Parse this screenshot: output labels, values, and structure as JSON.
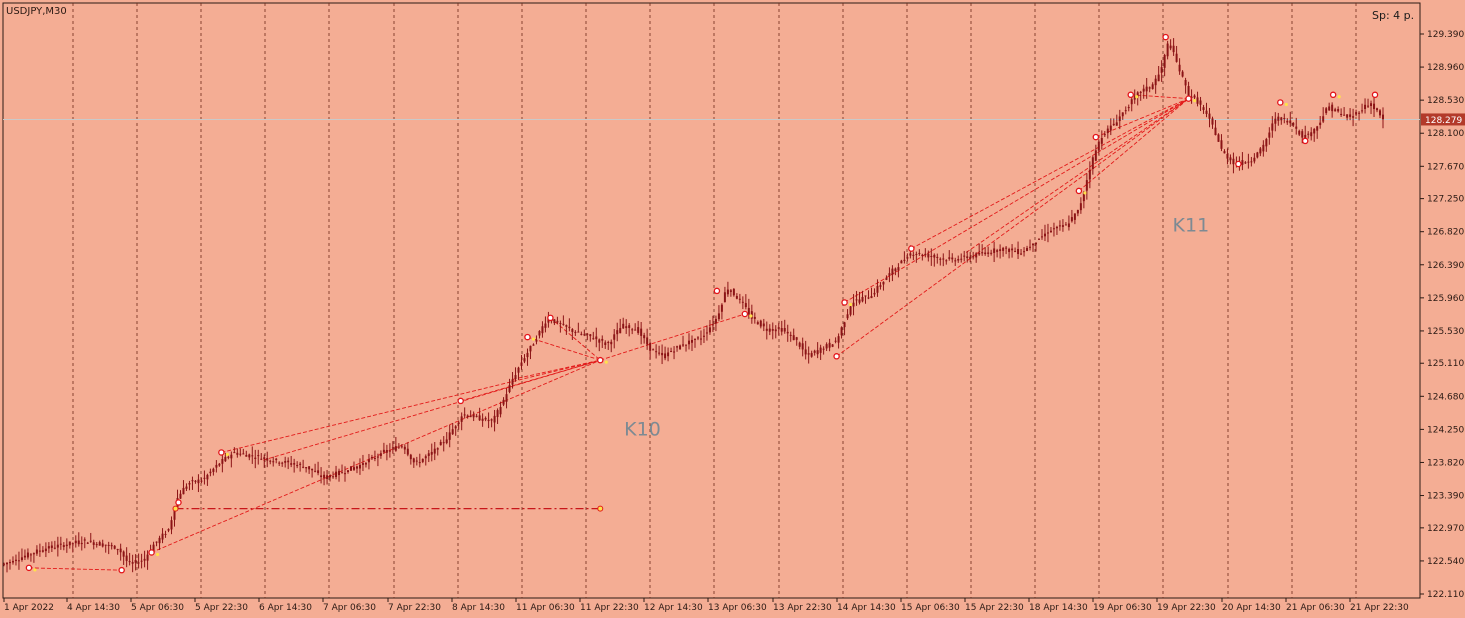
{
  "window": {
    "symbol_title": "USDJPY,M30",
    "spread_label": "Sp: 4 p."
  },
  "colors": {
    "background": "#f4ad94",
    "candle": "#8b1416",
    "grid": "#6e2a1a",
    "trendline": "#e21a1a",
    "marker": "#ffffff",
    "marker_yellow": "#ffe24a",
    "price_line": "#c9c9c9",
    "price_tag": "#b33a2a"
  },
  "chart_data": {
    "type": "candlestick",
    "symbol": "USDJPY",
    "timeframe": "M30",
    "ylim": [
      122.11,
      129.59
    ],
    "grid": "vertical-dashed",
    "y_ticks": [
      "129.390",
      "128.960",
      "128.530",
      "128.100",
      "127.670",
      "127.250",
      "126.820",
      "126.390",
      "125.960",
      "125.530",
      "125.110",
      "124.680",
      "124.250",
      "123.820",
      "123.390",
      "122.970",
      "122.540",
      "122.110"
    ],
    "x_ticks": [
      "1 Apr 2022",
      "4 Apr 14:30",
      "5 Apr 06:30",
      "5 Apr 22:30",
      "6 Apr 14:30",
      "7 Apr 06:30",
      "7 Apr 22:30",
      "8 Apr 14:30",
      "11 Apr 06:30",
      "11 Apr 22:30",
      "12 Apr 14:30",
      "13 Apr 06:30",
      "13 Apr 22:30",
      "14 Apr 14:30",
      "15 Apr 06:30",
      "15 Apr 22:30",
      "18 Apr 14:30",
      "19 Apr 06:30",
      "19 Apr 22:30",
      "20 Apr 14:30",
      "21 Apr 06:30",
      "21 Apr 22:30"
    ],
    "current_price": "128.279",
    "price_path": [
      [
        0,
        122.5
      ],
      [
        20,
        122.6
      ],
      [
        40,
        122.7
      ],
      [
        60,
        122.75
      ],
      [
        80,
        122.8
      ],
      [
        100,
        122.75
      ],
      [
        115,
        122.7
      ],
      [
        125,
        122.5
      ],
      [
        140,
        122.55
      ],
      [
        150,
        122.75
      ],
      [
        165,
        122.95
      ],
      [
        175,
        123.4
      ],
      [
        185,
        123.55
      ],
      [
        200,
        123.6
      ],
      [
        215,
        123.8
      ],
      [
        230,
        123.95
      ],
      [
        250,
        123.9
      ],
      [
        270,
        123.85
      ],
      [
        290,
        123.8
      ],
      [
        305,
        123.75
      ],
      [
        320,
        123.62
      ],
      [
        340,
        123.7
      ],
      [
        360,
        123.8
      ],
      [
        380,
        123.95
      ],
      [
        400,
        124.05
      ],
      [
        412,
        123.8
      ],
      [
        430,
        123.95
      ],
      [
        445,
        124.15
      ],
      [
        460,
        124.45
      ],
      [
        475,
        124.4
      ],
      [
        490,
        124.35
      ],
      [
        500,
        124.6
      ],
      [
        510,
        124.9
      ],
      [
        520,
        125.15
      ],
      [
        530,
        125.35
      ],
      [
        545,
        125.7
      ],
      [
        560,
        125.6
      ],
      [
        575,
        125.5
      ],
      [
        590,
        125.45
      ],
      [
        605,
        125.35
      ],
      [
        620,
        125.6
      ],
      [
        635,
        125.55
      ],
      [
        648,
        125.3
      ],
      [
        660,
        125.2
      ],
      [
        680,
        125.35
      ],
      [
        700,
        125.45
      ],
      [
        715,
        125.7
      ],
      [
        725,
        126.1
      ],
      [
        740,
        125.9
      ],
      [
        750,
        125.7
      ],
      [
        765,
        125.55
      ],
      [
        780,
        125.55
      ],
      [
        795,
        125.4
      ],
      [
        805,
        125.2
      ],
      [
        820,
        125.3
      ],
      [
        835,
        125.4
      ],
      [
        850,
        125.9
      ],
      [
        870,
        126.0
      ],
      [
        890,
        126.3
      ],
      [
        910,
        126.55
      ],
      [
        930,
        126.5
      ],
      [
        950,
        126.45
      ],
      [
        970,
        126.5
      ],
      [
        985,
        126.55
      ],
      [
        1000,
        126.6
      ],
      [
        1020,
        126.55
      ],
      [
        1035,
        126.7
      ],
      [
        1050,
        126.85
      ],
      [
        1065,
        126.9
      ],
      [
        1078,
        127.1
      ],
      [
        1090,
        127.7
      ],
      [
        1100,
        128.05
      ],
      [
        1115,
        128.25
      ],
      [
        1130,
        128.5
      ],
      [
        1140,
        128.65
      ],
      [
        1150,
        128.7
      ],
      [
        1160,
        128.9
      ],
      [
        1168,
        129.3
      ],
      [
        1178,
        128.95
      ],
      [
        1188,
        128.6
      ],
      [
        1198,
        128.5
      ],
      [
        1212,
        128.2
      ],
      [
        1222,
        127.85
      ],
      [
        1235,
        127.7
      ],
      [
        1250,
        127.75
      ],
      [
        1262,
        127.9
      ],
      [
        1275,
        128.3
      ],
      [
        1290,
        128.25
      ],
      [
        1303,
        128.05
      ],
      [
        1315,
        128.15
      ],
      [
        1328,
        128.45
      ],
      [
        1340,
        128.35
      ],
      [
        1350,
        128.3
      ],
      [
        1360,
        128.4
      ],
      [
        1370,
        128.5
      ],
      [
        1383,
        128.279
      ]
    ],
    "x_range": [
      0,
      1383
    ],
    "annotations": [
      {
        "text": "K10",
        "x": 640,
        "price": 124.25
      },
      {
        "text": "K11",
        "x": 1190,
        "price": 126.9
      }
    ],
    "swing_points": [
      {
        "x": 25,
        "price": 122.45
      },
      {
        "x": 118,
        "price": 122.42
      },
      {
        "x": 148,
        "price": 122.65
      },
      {
        "x": 175,
        "price": 123.3
      },
      {
        "x": 218,
        "price": 123.95
      },
      {
        "x": 548,
        "price": 125.7
      },
      {
        "x": 525,
        "price": 125.45
      },
      {
        "x": 458,
        "price": 124.62
      },
      {
        "x": 598,
        "price": 125.15
      },
      {
        "x": 715,
        "price": 126.05
      },
      {
        "x": 743,
        "price": 125.75
      },
      {
        "x": 835,
        "price": 125.2
      },
      {
        "x": 843,
        "price": 125.9
      },
      {
        "x": 910,
        "price": 126.6
      },
      {
        "x": 1078,
        "price": 127.35
      },
      {
        "x": 1095,
        "price": 128.05
      },
      {
        "x": 1130,
        "price": 128.6
      },
      {
        "x": 1165,
        "price": 129.35
      },
      {
        "x": 1188,
        "price": 128.55
      },
      {
        "x": 1238,
        "price": 127.7
      },
      {
        "x": 1280,
        "price": 128.5
      },
      {
        "x": 1305,
        "price": 128.0
      },
      {
        "x": 1333,
        "price": 128.6
      },
      {
        "x": 1375,
        "price": 128.6
      }
    ],
    "trendlines": [
      {
        "from": [
          25,
          122.45
        ],
        "to": [
          118,
          122.42
        ]
      },
      {
        "from": [
          148,
          122.65
        ],
        "to": [
          598,
          125.15
        ]
      },
      {
        "from": [
          218,
          123.95
        ],
        "to": [
          598,
          125.15
        ]
      },
      {
        "from": [
          260,
          123.85
        ],
        "to": [
          598,
          125.15
        ]
      },
      {
        "from": [
          458,
          124.62
        ],
        "to": [
          598,
          125.15
        ]
      },
      {
        "from": [
          510,
          124.9
        ],
        "to": [
          598,
          125.15
        ]
      },
      {
        "from": [
          525,
          125.45
        ],
        "to": [
          598,
          125.15
        ]
      },
      {
        "from": [
          548,
          125.7
        ],
        "to": [
          598,
          125.15
        ]
      },
      {
        "from": [
          598,
          125.15
        ],
        "to": [
          743,
          125.75
        ]
      },
      {
        "from": [
          835,
          125.2
        ],
        "to": [
          1188,
          128.55
        ]
      },
      {
        "from": [
          843,
          125.9
        ],
        "to": [
          1188,
          128.55
        ]
      },
      {
        "from": [
          910,
          126.6
        ],
        "to": [
          1188,
          128.55
        ]
      },
      {
        "from": [
          965,
          126.55
        ],
        "to": [
          1188,
          128.55
        ]
      },
      {
        "from": [
          1078,
          127.35
        ],
        "to": [
          1188,
          128.55
        ]
      },
      {
        "from": [
          1095,
          128.05
        ],
        "to": [
          1188,
          128.55
        ]
      },
      {
        "from": [
          1130,
          128.6
        ],
        "to": [
          1188,
          128.55
        ]
      }
    ],
    "horizontal_line": {
      "price": 123.22,
      "x_from": 172,
      "x_to": 598
    }
  }
}
